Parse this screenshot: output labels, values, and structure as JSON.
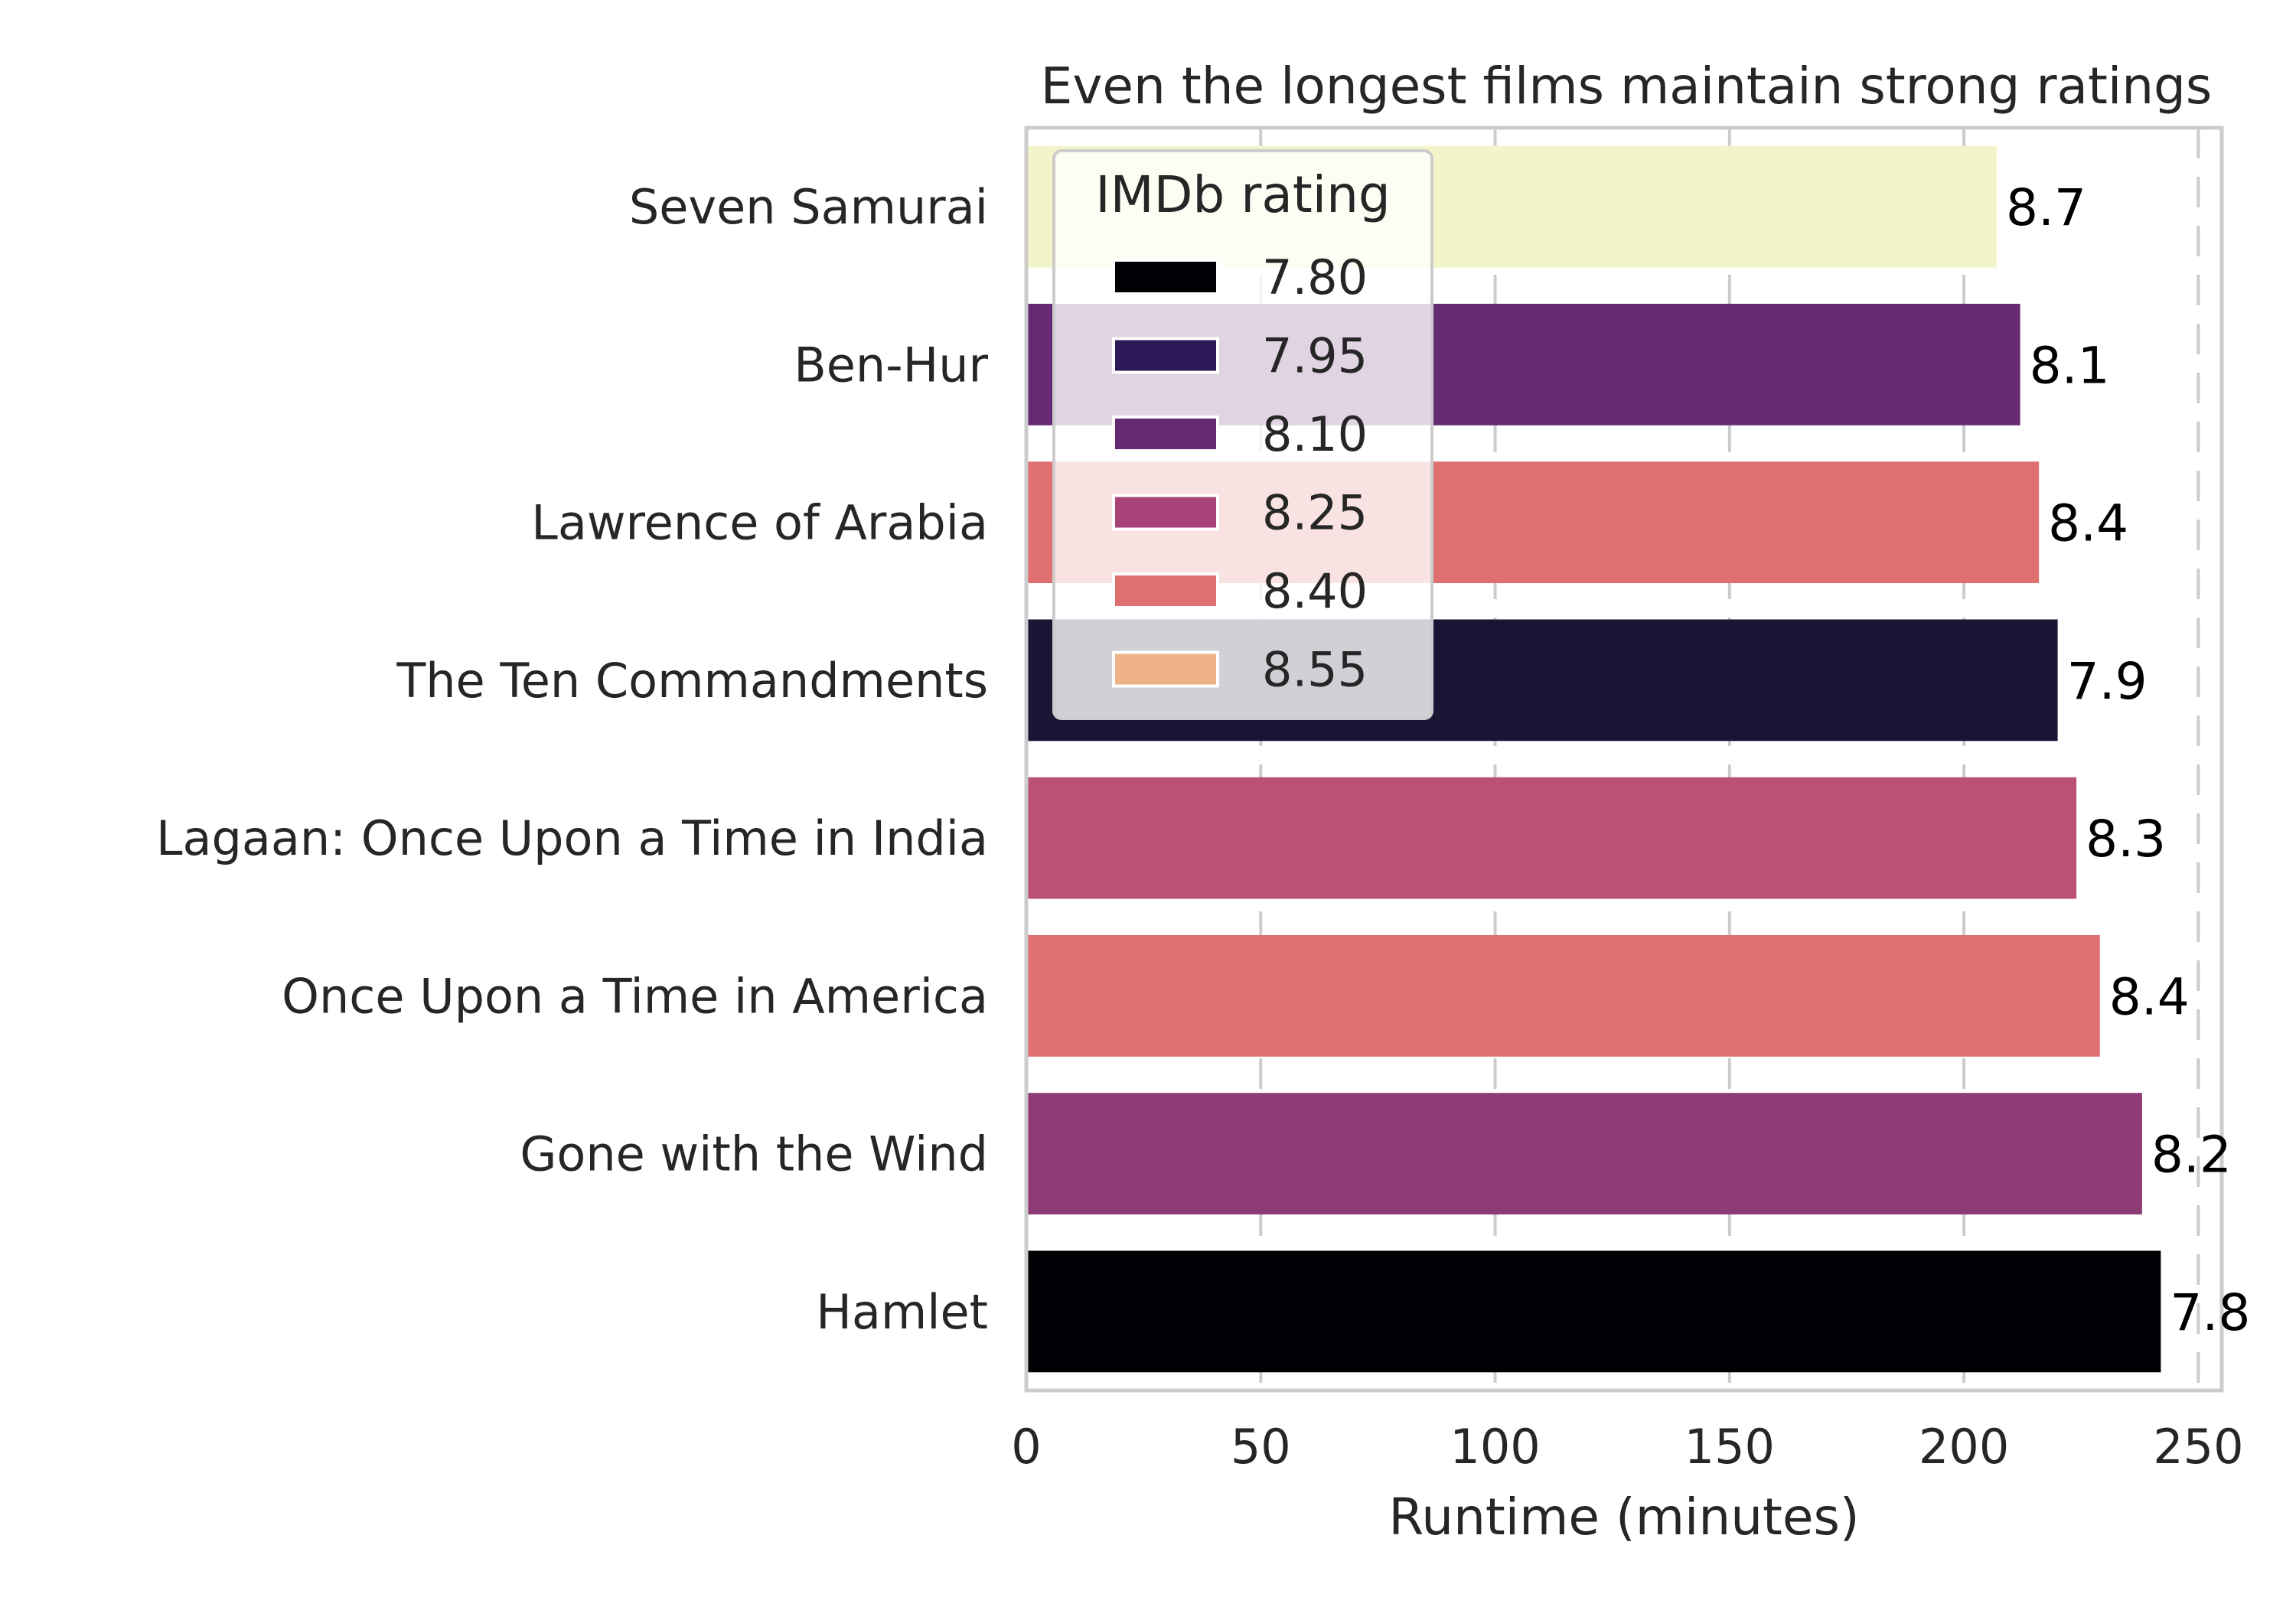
{
  "chart_data": {
    "type": "bar",
    "orientation": "horizontal",
    "title": "Even the longest films maintain strong ratings",
    "xlabel": "Runtime (minutes)",
    "ylabel": "",
    "xlim": [
      0,
      255
    ],
    "xticks": [
      0,
      50,
      100,
      150,
      200,
      250
    ],
    "grid": "vertical",
    "categories": [
      "Seven Samurai",
      "Ben-Hur",
      "Lawrence of Arabia",
      "The Ten Commandments",
      "Lagaan: Once Upon a Time in India",
      "Once Upon a Time in America",
      "Gone with the Wind",
      "Hamlet"
    ],
    "values": [
      207,
      212,
      216,
      220,
      224,
      229,
      238,
      242
    ],
    "ratings": [
      8.7,
      8.1,
      8.4,
      7.9,
      8.3,
      8.4,
      8.2,
      7.8
    ],
    "bar_labels": [
      "8.7",
      "8.1",
      "8.4",
      "7.9",
      "8.3",
      "8.4",
      "8.2",
      "7.8"
    ],
    "bar_colors": [
      "#f3f5c8",
      "#662a72",
      "#df706f",
      "#1b1535",
      "#bb5174",
      "#df706f",
      "#8e3a75",
      "#000004"
    ],
    "legend": {
      "title": "IMDb rating",
      "placement": "upper-left",
      "entries": [
        {
          "label": "7.80",
          "color": "#000004"
        },
        {
          "label": "7.95",
          "color": "#2c1a58"
        },
        {
          "label": "8.10",
          "color": "#662a72"
        },
        {
          "label": "8.25",
          "color": "#a8437a"
        },
        {
          "label": "8.40",
          "color": "#df706f"
        },
        {
          "label": "8.55",
          "color": "#eeb289"
        }
      ]
    }
  }
}
